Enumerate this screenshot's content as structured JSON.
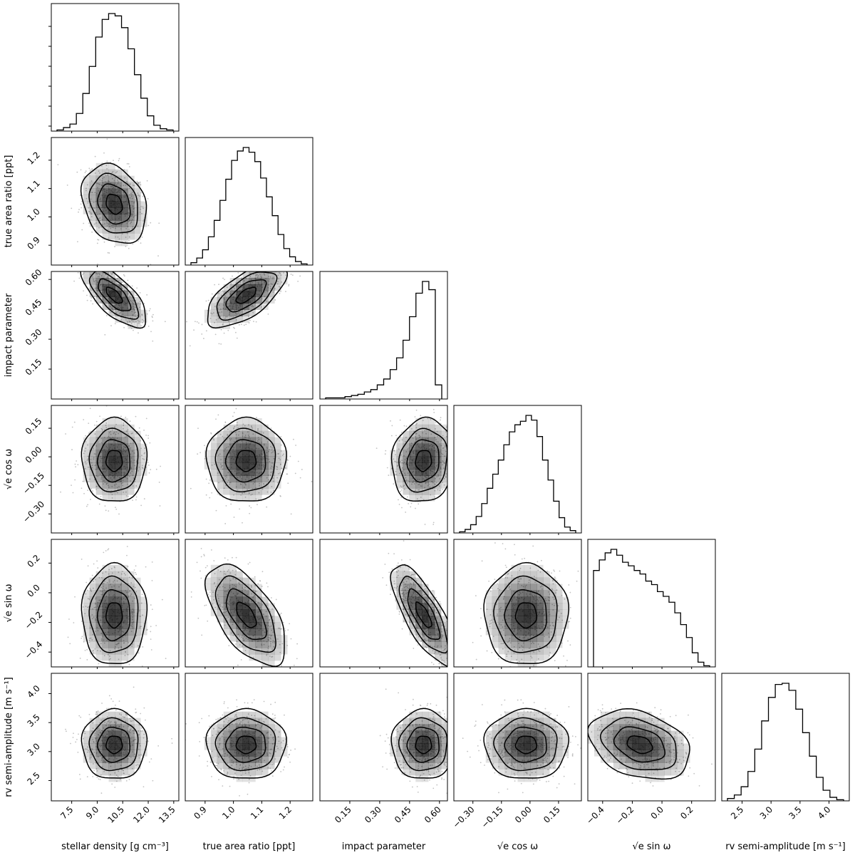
{
  "chart_data": {
    "type": "corner",
    "parameters": [
      {
        "id": "rho",
        "label": "stellar density [g cm⁻³]",
        "range": [
          6.3,
          13.8
        ],
        "ticks": [
          "7.5",
          "9.0",
          "10.5",
          "12.0",
          "13.5"
        ],
        "tick_values": [
          7.5,
          9.0,
          10.5,
          12.0,
          13.5
        ],
        "mean": 10.0,
        "sd": 0.95
      },
      {
        "id": "ar",
        "label": "true area ratio [ppt]",
        "range": [
          0.83,
          1.28
        ],
        "ticks": [
          "0.9",
          "1.0",
          "1.1",
          "1.2"
        ],
        "tick_values": [
          0.9,
          1.0,
          1.1,
          1.2
        ],
        "mean": 1.045,
        "sd": 0.07
      },
      {
        "id": "b",
        "label": "impact parameter",
        "range": [
          0.0,
          0.64
        ],
        "ticks": [
          "0.15",
          "0.30",
          "0.45",
          "0.60"
        ],
        "tick_values": [
          0.15,
          0.3,
          0.45,
          0.6
        ],
        "mean": 0.52,
        "sd": 0.08
      },
      {
        "id": "ecw",
        "label": "√e  cos ω",
        "range": [
          -0.4,
          0.27
        ],
        "ticks": [
          "−0.30",
          "−0.15",
          "0.00",
          "0.15"
        ],
        "tick_values": [
          -0.3,
          -0.15,
          0.0,
          0.15
        ],
        "mean": -0.02,
        "sd": 0.11
      },
      {
        "id": "esw",
        "label": "√e  sin ω",
        "range": [
          -0.5,
          0.36
        ],
        "ticks": [
          "−0.4",
          "−0.2",
          "0.0",
          "0.2"
        ],
        "tick_values": [
          -0.4,
          -0.2,
          0.0,
          0.2
        ],
        "mean": -0.15,
        "sd": 0.17
      },
      {
        "id": "K",
        "label": "rv semi-amplitude [m s⁻¹]",
        "range": [
          2.15,
          4.35
        ],
        "ticks": [
          "2.5",
          "3.0",
          "3.5",
          "4.0"
        ],
        "tick_values": [
          2.5,
          3.0,
          3.5,
          4.0
        ],
        "mean": 3.12,
        "sd": 0.3
      }
    ],
    "y_axis_params": [
      "ar",
      "b",
      "ecw",
      "esw",
      "K"
    ],
    "x_axis_params": [
      "rho",
      "ar",
      "b",
      "ecw",
      "esw",
      "K"
    ],
    "histograms": [
      {
        "param": "rho",
        "counts": [
          0.01,
          0.03,
          0.06,
          0.15,
          0.32,
          0.55,
          0.8,
          0.95,
          1.0,
          0.98,
          0.88,
          0.7,
          0.48,
          0.28,
          0.13,
          0.05,
          0.02,
          0.01
        ]
      },
      {
        "param": "ar",
        "counts": [
          0.02,
          0.06,
          0.13,
          0.24,
          0.38,
          0.55,
          0.73,
          0.89,
          0.97,
          1.0,
          0.96,
          0.88,
          0.74,
          0.58,
          0.42,
          0.26,
          0.14,
          0.07,
          0.03,
          0.01
        ]
      },
      {
        "param": "b",
        "counts": [
          0.01,
          0.01,
          0.01,
          0.02,
          0.03,
          0.04,
          0.06,
          0.08,
          0.12,
          0.17,
          0.25,
          0.35,
          0.5,
          0.7,
          0.9,
          1.0,
          0.93,
          0.12
        ]
      },
      {
        "param": "ecw",
        "counts": [
          0.01,
          0.03,
          0.07,
          0.14,
          0.25,
          0.38,
          0.5,
          0.62,
          0.75,
          0.86,
          0.92,
          0.95,
          1.0,
          0.96,
          0.82,
          0.62,
          0.45,
          0.27,
          0.13,
          0.05,
          0.02
        ]
      },
      {
        "param": "esw",
        "counts": [
          0.82,
          0.91,
          0.97,
          1.0,
          0.95,
          0.89,
          0.86,
          0.82,
          0.79,
          0.73,
          0.7,
          0.64,
          0.6,
          0.55,
          0.46,
          0.36,
          0.25,
          0.12,
          0.04,
          0.01
        ]
      },
      {
        "param": "K",
        "counts": [
          0.02,
          0.05,
          0.12,
          0.25,
          0.44,
          0.68,
          0.88,
          0.99,
          1.0,
          0.94,
          0.78,
          0.58,
          0.38,
          0.2,
          0.09,
          0.03,
          0.01
        ]
      }
    ],
    "correlations": [
      {
        "x": "rho",
        "y": "ar",
        "rho": -0.25
      },
      {
        "x": "rho",
        "y": "b",
        "rho": -0.7
      },
      {
        "x": "ar",
        "y": "b",
        "rho": 0.65
      },
      {
        "x": "rho",
        "y": "ecw",
        "rho": 0.0
      },
      {
        "x": "ar",
        "y": "ecw",
        "rho": 0.0
      },
      {
        "x": "b",
        "y": "ecw",
        "rho": 0.1
      },
      {
        "x": "rho",
        "y": "esw",
        "rho": 0.0
      },
      {
        "x": "ar",
        "y": "esw",
        "rho": -0.6
      },
      {
        "x": "b",
        "y": "esw",
        "rho": -0.75
      },
      {
        "x": "ecw",
        "y": "esw",
        "rho": 0.0
      },
      {
        "x": "rho",
        "y": "K",
        "rho": 0.0
      },
      {
        "x": "ar",
        "y": "K",
        "rho": 0.0
      },
      {
        "x": "b",
        "y": "K",
        "rho": 0.0
      },
      {
        "x": "ecw",
        "y": "K",
        "rho": 0.0
      },
      {
        "x": "esw",
        "y": "K",
        "rho": -0.3
      }
    ],
    "contour_levels_sigma": [
      0.5,
      1.0,
      1.5,
      2.0
    ],
    "colors": {
      "line": "#000000",
      "points": "#a8a8a8",
      "density": "#000000",
      "frame": "#000000"
    }
  }
}
